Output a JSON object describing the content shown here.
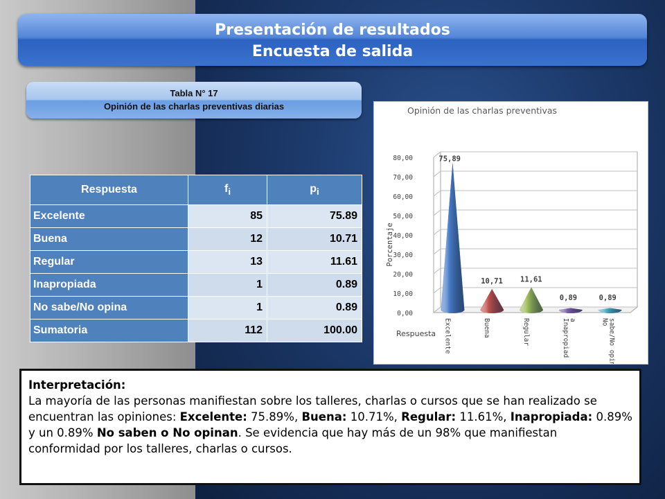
{
  "slide": {
    "title_line1": "Presentación de resultados",
    "title_line2": "Encuesta de salida",
    "table_caption_line1": "Tabla N° 17",
    "table_caption_line2": "Opinión de las charlas preventivas diarias"
  },
  "table": {
    "headers": [
      "Respuesta",
      "f",
      "p"
    ],
    "header_subscript": "i",
    "rows": [
      {
        "label": "Excelente",
        "f": "85",
        "p": "75.89"
      },
      {
        "label": "Buena",
        "f": "12",
        "p": "10.71"
      },
      {
        "label": "Regular",
        "f": "13",
        "p": "11.61"
      },
      {
        "label": "Inapropiada",
        "f": "1",
        "p": "0.89"
      },
      {
        "label": "No sabe/No opina",
        "f": "1",
        "p": "0.89"
      },
      {
        "label": "Sumatoria",
        "f": "112",
        "p": "100.00"
      }
    ]
  },
  "chart_data": {
    "type": "bar",
    "title": "Opinión de las charlas preventivas",
    "xlabel": "Respuesta",
    "ylabel": "Porcentaje",
    "ylim": [
      0,
      80
    ],
    "yticks": [
      "0,00",
      "10,00",
      "20,00",
      "30,00",
      "40,00",
      "50,00",
      "60,00",
      "70,00",
      "80,00"
    ],
    "categories": [
      "Excelente",
      "Buena",
      "Regular",
      "Inapropiad a",
      "No sabe/No opina"
    ],
    "values": [
      75.89,
      10.71,
      11.61,
      0.89,
      0.89
    ],
    "value_labels": [
      "75,89",
      "10,71",
      "11,61",
      "0,89",
      "0,89"
    ],
    "colors": [
      "#4a7ec9",
      "#c0504d",
      "#9bbb59",
      "#7e5fa6",
      "#4bacc6"
    ],
    "grid": true,
    "legend": "none"
  },
  "interpretation": {
    "heading": "Interpretación:",
    "t1": "La mayoría de las personas manifiestan sobre los talleres, charlas o cursos que se han realizado se encuentran las opiniones: ",
    "b1": "Excelente:",
    "t2": " 75.89%, ",
    "b2": "Buena:",
    "t3": " 10.71%, ",
    "b3": "Regular:",
    "t4": " 11.61%, ",
    "b4": "Inapropiada:",
    "t5": " 0.89% y un 0.89% ",
    "b5": "No saben o No opinan",
    "t6": ". Se evidencia que hay más de un 98% que manifiestan conformidad por los talleres, charlas o cursos."
  }
}
